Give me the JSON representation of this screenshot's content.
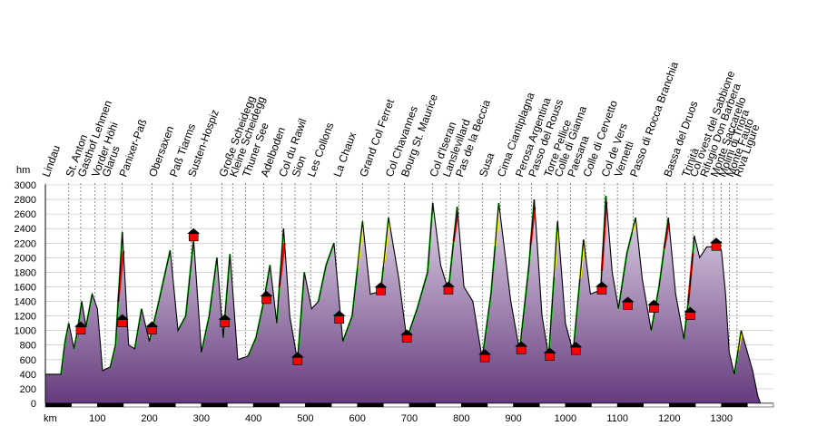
{
  "chart_data": {
    "type": "area",
    "xlabel": "km",
    "ylabel": "hm",
    "xlim": [
      0,
      1400
    ],
    "ylim": [
      0,
      3000
    ],
    "x_ticks": [
      100,
      200,
      300,
      400,
      500,
      600,
      700,
      800,
      900,
      1000,
      1100,
      1200,
      1300
    ],
    "y_ticks": [
      0,
      200,
      400,
      600,
      800,
      1000,
      1200,
      1400,
      1600,
      1800,
      2000,
      2200,
      2400,
      2600,
      2800,
      3000
    ],
    "grid": true,
    "colors": {
      "fill_top": "#ded2e6",
      "fill_bottom": "#6a3f83",
      "profile": "#000000",
      "climb_moderate": "#22dd22",
      "climb_steep": "#ffff00",
      "climb_very_steep": "#ff0000",
      "waypoint_marker": "#ff0000"
    },
    "places": [
      {
        "name": "Lindau",
        "km": 0,
        "alt": 400
      },
      {
        "name": "St. Anton",
        "km": 45,
        "alt": 1000
      },
      {
        "name": "Gasthof Lehmen",
        "km": 68,
        "alt": 1100
      },
      {
        "name": "Vorder Höhi",
        "km": 95,
        "alt": 1500
      },
      {
        "name": "Glarus",
        "km": 115,
        "alt": 500
      },
      {
        "name": "Panixer-Paß",
        "km": 148,
        "alt": 2400
      },
      {
        "name": "Obersaxen",
        "km": 205,
        "alt": 1300
      },
      {
        "name": "Paß Tiarms",
        "km": 245,
        "alt": 2100
      },
      {
        "name": "Susten-Hospiz",
        "km": 280,
        "alt": 2250
      },
      {
        "name": "Große Scheidegg",
        "km": 340,
        "alt": 1950
      },
      {
        "name": "Kleine Scheidegg",
        "km": 360,
        "alt": 2050
      },
      {
        "name": "Thuner See",
        "km": 385,
        "alt": 600
      },
      {
        "name": "Adelboden",
        "km": 420,
        "alt": 1400
      },
      {
        "name": "Col du Rawil",
        "km": 455,
        "alt": 2400
      },
      {
        "name": "Sion",
        "km": 480,
        "alt": 550
      },
      {
        "name": "Les Collons",
        "km": 510,
        "alt": 1800
      },
      {
        "name": "La Chaux",
        "km": 560,
        "alt": 2200
      },
      {
        "name": "Grand Col Ferret",
        "km": 610,
        "alt": 2500
      },
      {
        "name": "Col Chavannes",
        "km": 660,
        "alt": 2550
      },
      {
        "name": "Bourg St. Maurice",
        "km": 690,
        "alt": 850
      },
      {
        "name": "Col d'Iseran",
        "km": 745,
        "alt": 2750
      },
      {
        "name": "Lanslevillard",
        "km": 770,
        "alt": 1500
      },
      {
        "name": "Pas de la Beccia",
        "km": 795,
        "alt": 2700
      },
      {
        "name": "Susa",
        "km": 840,
        "alt": 600
      },
      {
        "name": "Cima Ciantiplagna",
        "km": 875,
        "alt": 2750
      },
      {
        "name": "Perosa Argentina",
        "km": 910,
        "alt": 700
      },
      {
        "name": "Passo del Rouss",
        "km": 935,
        "alt": 2800
      },
      {
        "name": "Torre Pellice",
        "km": 965,
        "alt": 650
      },
      {
        "name": "Colle di Gianna",
        "km": 985,
        "alt": 2500
      },
      {
        "name": "Paesana",
        "km": 1010,
        "alt": 700
      },
      {
        "name": "Colle di Cervetto",
        "km": 1040,
        "alt": 2250
      },
      {
        "name": "Col de Vers",
        "km": 1075,
        "alt": 2850
      },
      {
        "name": "Vernetti",
        "km": 1100,
        "alt": 1300
      },
      {
        "name": "Passo di Rocca Branchia",
        "km": 1130,
        "alt": 2550
      },
      {
        "name": "Bassa del Druos",
        "km": 1195,
        "alt": 2600
      },
      {
        "name": "Trinità",
        "km": 1230,
        "alt": 1200
      },
      {
        "name": "Col ovest del Sabbione",
        "km": 1245,
        "alt": 2300
      },
      {
        "name": "Rifugio Don Barbera",
        "km": 1265,
        "alt": 2100
      },
      {
        "name": "Monte Saccarello",
        "km": 1285,
        "alt": 2200
      },
      {
        "name": "Molini di Triora",
        "km": 1300,
        "alt": 450
      },
      {
        "name": "Monte Fauto",
        "km": 1315,
        "alt": 1000
      },
      {
        "name": "Riva Ligure",
        "km": 1330,
        "alt": 0
      }
    ],
    "waypoints": [
      {
        "km": 68,
        "alt": 1000
      },
      {
        "km": 148,
        "alt": 1100
      },
      {
        "km": 205,
        "alt": 1000
      },
      {
        "km": 285,
        "alt": 2280
      },
      {
        "km": 345,
        "alt": 1100
      },
      {
        "km": 425,
        "alt": 1420
      },
      {
        "km": 485,
        "alt": 580
      },
      {
        "km": 565,
        "alt": 1150
      },
      {
        "km": 645,
        "alt": 1540
      },
      {
        "km": 695,
        "alt": 890
      },
      {
        "km": 775,
        "alt": 1550
      },
      {
        "km": 845,
        "alt": 620
      },
      {
        "km": 915,
        "alt": 730
      },
      {
        "km": 970,
        "alt": 640
      },
      {
        "km": 1020,
        "alt": 720
      },
      {
        "km": 1070,
        "alt": 1550
      },
      {
        "km": 1120,
        "alt": 1340
      },
      {
        "km": 1170,
        "alt": 1300
      },
      {
        "km": 1240,
        "alt": 1200
      },
      {
        "km": 1290,
        "alt": 2150
      }
    ],
    "profile": [
      [
        0,
        400
      ],
      [
        30,
        400
      ],
      [
        38,
        850
      ],
      [
        45,
        1100
      ],
      [
        55,
        750
      ],
      [
        62,
        1000
      ],
      [
        70,
        1400
      ],
      [
        78,
        1050
      ],
      [
        90,
        1500
      ],
      [
        100,
        1300
      ],
      [
        110,
        450
      ],
      [
        125,
        500
      ],
      [
        135,
        800
      ],
      [
        148,
        2350
      ],
      [
        160,
        800
      ],
      [
        172,
        750
      ],
      [
        185,
        1300
      ],
      [
        200,
        850
      ],
      [
        215,
        1300
      ],
      [
        240,
        2100
      ],
      [
        255,
        1000
      ],
      [
        270,
        1200
      ],
      [
        285,
        2250
      ],
      [
        300,
        700
      ],
      [
        315,
        1200
      ],
      [
        330,
        2000
      ],
      [
        342,
        900
      ],
      [
        355,
        2050
      ],
      [
        370,
        600
      ],
      [
        390,
        650
      ],
      [
        405,
        900
      ],
      [
        420,
        1400
      ],
      [
        432,
        1900
      ],
      [
        445,
        1100
      ],
      [
        458,
        2400
      ],
      [
        470,
        1200
      ],
      [
        485,
        580
      ],
      [
        498,
        1800
      ],
      [
        512,
        1300
      ],
      [
        525,
        1400
      ],
      [
        540,
        1900
      ],
      [
        555,
        2200
      ],
      [
        572,
        850
      ],
      [
        590,
        1200
      ],
      [
        610,
        2500
      ],
      [
        625,
        1500
      ],
      [
        645,
        1540
      ],
      [
        660,
        2550
      ],
      [
        680,
        1700
      ],
      [
        695,
        880
      ],
      [
        715,
        1300
      ],
      [
        735,
        1800
      ],
      [
        745,
        2750
      ],
      [
        760,
        1900
      ],
      [
        775,
        1550
      ],
      [
        792,
        2700
      ],
      [
        805,
        1600
      ],
      [
        822,
        1400
      ],
      [
        840,
        610
      ],
      [
        857,
        1500
      ],
      [
        872,
        2750
      ],
      [
        895,
        1400
      ],
      [
        912,
        720
      ],
      [
        930,
        1900
      ],
      [
        940,
        2800
      ],
      [
        955,
        1200
      ],
      [
        968,
        640
      ],
      [
        985,
        2500
      ],
      [
        1000,
        1100
      ],
      [
        1015,
        700
      ],
      [
        1035,
        2250
      ],
      [
        1048,
        1500
      ],
      [
        1068,
        1560
      ],
      [
        1078,
        2850
      ],
      [
        1090,
        1800
      ],
      [
        1102,
        1300
      ],
      [
        1118,
        2050
      ],
      [
        1135,
        2550
      ],
      [
        1148,
        1700
      ],
      [
        1165,
        1000
      ],
      [
        1180,
        1600
      ],
      [
        1198,
        2550
      ],
      [
        1212,
        1500
      ],
      [
        1228,
        880
      ],
      [
        1238,
        1500
      ],
      [
        1248,
        2300
      ],
      [
        1258,
        2000
      ],
      [
        1272,
        2150
      ],
      [
        1288,
        2150
      ],
      [
        1300,
        2100
      ],
      [
        1308,
        1500
      ],
      [
        1315,
        700
      ],
      [
        1325,
        400
      ],
      [
        1338,
        1000
      ],
      [
        1350,
        700
      ],
      [
        1360,
        450
      ],
      [
        1370,
        100
      ],
      [
        1375,
        0
      ]
    ],
    "climb_highlights": [
      {
        "from": 140,
        "to": 150,
        "level": "very_steep"
      },
      {
        "from": 450,
        "to": 460,
        "level": "very_steep"
      },
      {
        "from": 785,
        "to": 793,
        "level": "very_steep"
      },
      {
        "from": 933,
        "to": 941,
        "level": "very_steep"
      },
      {
        "from": 1070,
        "to": 1079,
        "level": "very_steep"
      },
      {
        "from": 1190,
        "to": 1199,
        "level": "very_steep"
      },
      {
        "from": 1236,
        "to": 1245,
        "level": "very_steep"
      },
      {
        "from": 600,
        "to": 611,
        "level": "steep"
      },
      {
        "from": 650,
        "to": 661,
        "level": "steep"
      },
      {
        "from": 865,
        "to": 873,
        "level": "steep"
      },
      {
        "from": 978,
        "to": 986,
        "level": "steep"
      },
      {
        "from": 1028,
        "to": 1036,
        "level": "steep"
      },
      {
        "from": 1128,
        "to": 1136,
        "level": "steep"
      },
      {
        "from": 1332,
        "to": 1339,
        "level": "steep"
      }
    ]
  }
}
